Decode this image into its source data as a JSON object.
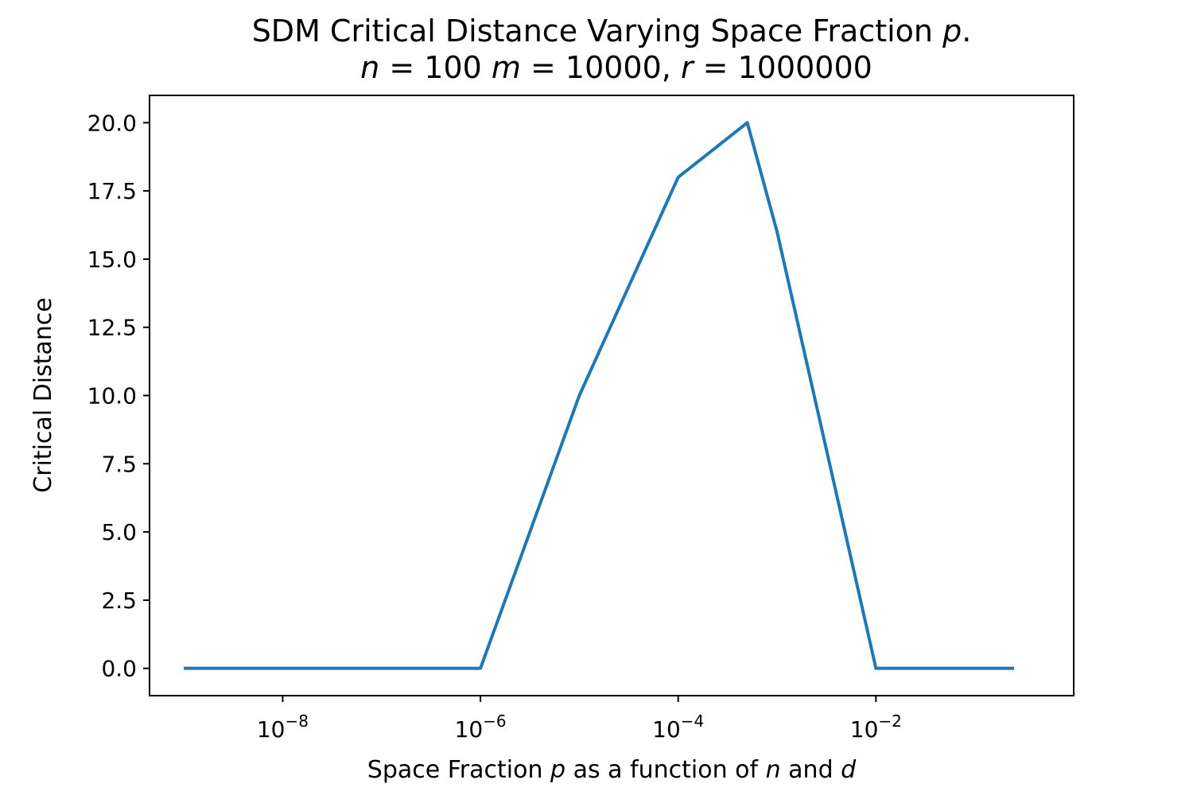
{
  "chart_data": {
    "type": "line",
    "title": "SDM Critical Distance Varying Space Fraction p.",
    "subtitle": "n = 100  m = 10000, r = 1000000",
    "title_parts": [
      {
        "text": "SDM Critical Distance Varying Space Fraction ",
        "italic": false
      },
      {
        "text": "p",
        "italic": true
      },
      {
        "text": ".",
        "italic": false
      }
    ],
    "subtitle_parts": [
      {
        "text": "n",
        "italic": true
      },
      {
        "text": " = 100 ",
        "italic": false
      },
      {
        "text": "m",
        "italic": true
      },
      {
        "text": " = 10000, ",
        "italic": false
      },
      {
        "text": "r",
        "italic": true
      },
      {
        "text": " = 1000000",
        "italic": false
      }
    ],
    "xlabel": "Space Fraction p as a function of n and d",
    "xlabel_parts": [
      {
        "text": "Space Fraction ",
        "italic": false
      },
      {
        "text": "p",
        "italic": true
      },
      {
        "text": " as a function of ",
        "italic": false
      },
      {
        "text": "n",
        "italic": true
      },
      {
        "text": " and ",
        "italic": false
      },
      {
        "text": "d",
        "italic": true
      }
    ],
    "ylabel": "Critical Distance",
    "x_scale": "log",
    "xlim": [
      4.5e-10,
      1.0
    ],
    "ylim": [
      -1.0,
      21.0
    ],
    "x_ticks": [
      {
        "value": 1e-08,
        "base": "10",
        "exp": "−8"
      },
      {
        "value": 1e-06,
        "base": "10",
        "exp": "−6"
      },
      {
        "value": 0.0001,
        "base": "10",
        "exp": "−4"
      },
      {
        "value": 0.01,
        "base": "10",
        "exp": "−2"
      }
    ],
    "y_ticks": [
      {
        "value": 0.0,
        "label": "0.0"
      },
      {
        "value": 2.5,
        "label": "2.5"
      },
      {
        "value": 5.0,
        "label": "5.0"
      },
      {
        "value": 7.5,
        "label": "7.5"
      },
      {
        "value": 10.0,
        "label": "10.0"
      },
      {
        "value": 12.5,
        "label": "12.5"
      },
      {
        "value": 15.0,
        "label": "15.0"
      },
      {
        "value": 17.5,
        "label": "17.5"
      },
      {
        "value": 20.0,
        "label": "20.0"
      }
    ],
    "grid": false,
    "legend": "none",
    "series": [
      {
        "color": "#1f77b4",
        "x": [
          1e-09,
          1e-06,
          1e-05,
          0.0001,
          0.0005,
          0.001,
          0.01,
          0.25
        ],
        "y": [
          0,
          0,
          10,
          18,
          20,
          16,
          0,
          0
        ]
      }
    ]
  }
}
